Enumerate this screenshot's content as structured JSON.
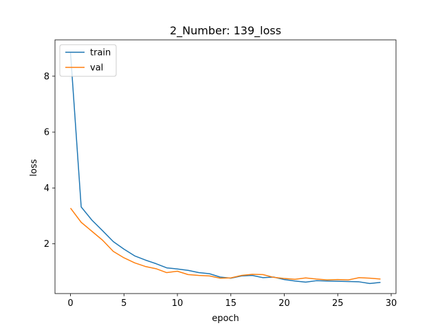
{
  "chart_data": {
    "type": "line",
    "title": "2_Number: 139_loss",
    "xlabel": "epoch",
    "ylabel": "loss",
    "xlim": [
      -1.45,
      30.45
    ],
    "ylim": [
      0.22,
      9.3
    ],
    "xticks": [
      0,
      5,
      10,
      15,
      20,
      25,
      30
    ],
    "yticks": [
      2,
      4,
      6,
      8
    ],
    "grid": false,
    "legend_position": "top-left",
    "series": [
      {
        "name": "train",
        "color": "#1f77b4",
        "x": [
          0,
          1,
          2,
          3,
          4,
          5,
          6,
          7,
          8,
          9,
          10,
          11,
          12,
          13,
          14,
          15,
          16,
          17,
          18,
          19,
          20,
          21,
          22,
          23,
          24,
          25,
          26,
          27,
          28,
          29
        ],
        "values": [
          8.85,
          3.32,
          2.85,
          2.47,
          2.08,
          1.81,
          1.57,
          1.42,
          1.29,
          1.14,
          1.1,
          1.05,
          0.97,
          0.93,
          0.81,
          0.77,
          0.85,
          0.87,
          0.79,
          0.81,
          0.72,
          0.67,
          0.63,
          0.68,
          0.67,
          0.66,
          0.65,
          0.64,
          0.58,
          0.62
        ]
      },
      {
        "name": "val",
        "color": "#ff7f0e",
        "x": [
          0,
          1,
          2,
          3,
          4,
          5,
          6,
          7,
          8,
          9,
          10,
          11,
          12,
          13,
          14,
          15,
          16,
          17,
          18,
          19,
          20,
          21,
          22,
          23,
          24,
          25,
          26,
          27,
          28,
          29
        ],
        "values": [
          3.28,
          2.77,
          2.45,
          2.13,
          1.73,
          1.5,
          1.32,
          1.19,
          1.11,
          0.97,
          1.02,
          0.9,
          0.87,
          0.85,
          0.77,
          0.78,
          0.87,
          0.91,
          0.9,
          0.8,
          0.76,
          0.73,
          0.78,
          0.74,
          0.71,
          0.72,
          0.71,
          0.79,
          0.77,
          0.74
        ]
      }
    ]
  }
}
